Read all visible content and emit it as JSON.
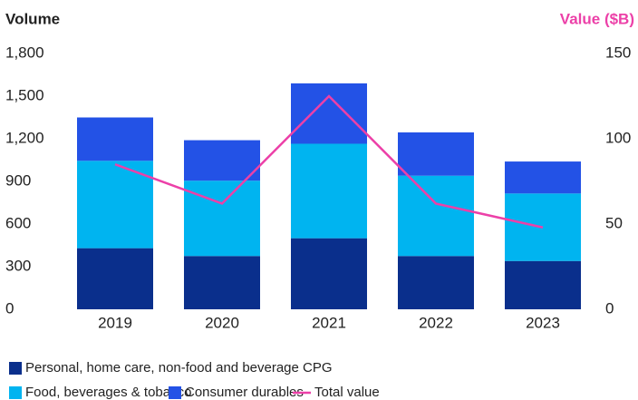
{
  "chart_data": {
    "type": "bar",
    "stacked": true,
    "y_title": "Volume",
    "y2_title": "Value ($B)",
    "categories": [
      "2019",
      "2020",
      "2021",
      "2022",
      "2023"
    ],
    "series": [
      {
        "name": "Personal, home care, non-food and beverage CPG",
        "color": "#0a2f8c",
        "values": [
          430,
          375,
          500,
          375,
          340
        ]
      },
      {
        "name": "Food, beverages & tobacco",
        "color": "#00b4f0",
        "values": [
          615,
          530,
          665,
          565,
          475
        ]
      },
      {
        "name": "Consumer durables",
        "color": "#2352e6",
        "values": [
          305,
          285,
          425,
          305,
          225
        ]
      },
      {
        "name": "Total value",
        "color": "#ec40a8",
        "type": "line",
        "axis": "y2",
        "values": [
          85,
          62,
          125,
          62,
          48
        ]
      }
    ],
    "ylim": [
      0,
      1800
    ],
    "yticks": [
      0,
      300,
      600,
      900,
      {
        "value": 1200,
        "label": "1,200"
      },
      {
        "value": 1500,
        "label": "1,500"
      },
      {
        "value": 1800,
        "label": "1,800"
      }
    ],
    "y2lim": [
      0,
      150
    ],
    "y2ticks": [
      0,
      50,
      100,
      150
    ],
    "y2_title_color": "#ec40a8"
  }
}
